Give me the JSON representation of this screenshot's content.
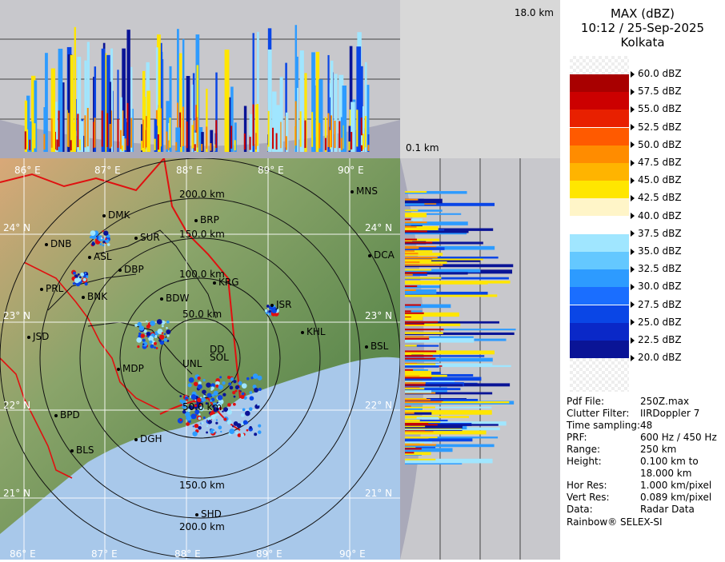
{
  "product": {
    "title": "MAX (dBZ)",
    "datetime": "10:12 / 25-Sep-2025",
    "station": "Kolkata"
  },
  "profile_labels": {
    "top": "18.0 km",
    "bottom": "0.1 km"
  },
  "legend": [
    {
      "label": "60.0 dBZ",
      "color": ""
    },
    {
      "label": "57.5 dBZ",
      "color": "#a80000"
    },
    {
      "label": "55.0 dBZ",
      "color": "#cc0000"
    },
    {
      "label": "52.5 dBZ",
      "color": "#e82000"
    },
    {
      "label": "50.0 dBZ",
      "color": "#ff5a00"
    },
    {
      "label": "47.5 dBZ",
      "color": "#ff8c00"
    },
    {
      "label": "45.0 dBZ",
      "color": "#ffb400"
    },
    {
      "label": "42.5 dBZ",
      "color": "#ffe600"
    },
    {
      "label": "40.0 dBZ",
      "color": "#fff5c8"
    },
    {
      "label": "37.5 dBZ",
      "color": "#ffffff"
    },
    {
      "label": "35.0 dBZ",
      "color": "#a0e6ff"
    },
    {
      "label": "32.5 dBZ",
      "color": "#64c8ff"
    },
    {
      "label": "30.0 dBZ",
      "color": "#2d9bff"
    },
    {
      "label": "27.5 dBZ",
      "color": "#1a6eff"
    },
    {
      "label": "25.0 dBZ",
      "color": "#0a46e6"
    },
    {
      "label": "22.5 dBZ",
      "color": "#0a28c8"
    },
    {
      "label": "20.0 dBZ",
      "color": "#0a1496"
    }
  ],
  "info": [
    {
      "key": "Pdf File:",
      "value": "250Z.max"
    },
    {
      "key": "Clutter Filter:",
      "value": "IIRDoppler 7"
    },
    {
      "key": "Time sampling:",
      "value": "48"
    },
    {
      "key": "PRF:",
      "value": "600 Hz / 450 Hz"
    },
    {
      "key": "Range:",
      "value": "250 km"
    },
    {
      "key": "Height:",
      "value": "0.100 km to"
    },
    {
      "key": "",
      "value": "18.000 km"
    },
    {
      "key": "Hor Res:",
      "value": "1.000 km/pixel"
    },
    {
      "key": "Vert Res:",
      "value": "0.089 km/pixel"
    },
    {
      "key": "Data:",
      "value": "Radar Data"
    }
  ],
  "footer": "Rainbow® SELEX-SI",
  "map": {
    "lon_labels": [
      "86° E",
      "87° E",
      "88° E",
      "89° E",
      "90° E"
    ],
    "lat_labels": [
      "24° N",
      "23° N",
      "22° N",
      "21° N"
    ],
    "range_rings": [
      "50.0 km",
      "100.0 km",
      "150.0 km",
      "200.0 km"
    ],
    "places": [
      "MNS",
      "DMK",
      "BRP",
      "SUR",
      "DNB",
      "ASL",
      "DBP",
      "DCA",
      "KRG",
      "PRL",
      "BNK",
      "BDW",
      "JSR",
      "KHL",
      "JSD",
      "BSL",
      "MDP",
      "BPD",
      "DGH",
      "BLS",
      "SHD"
    ],
    "center_labels": [
      "DD",
      "UNL",
      "SOL"
    ]
  },
  "colors": {
    "land": "#6d8e5a",
    "sea": "#a8c8ea",
    "profile_bg": "#c8c8cc",
    "boundary_red": "#e01010"
  }
}
